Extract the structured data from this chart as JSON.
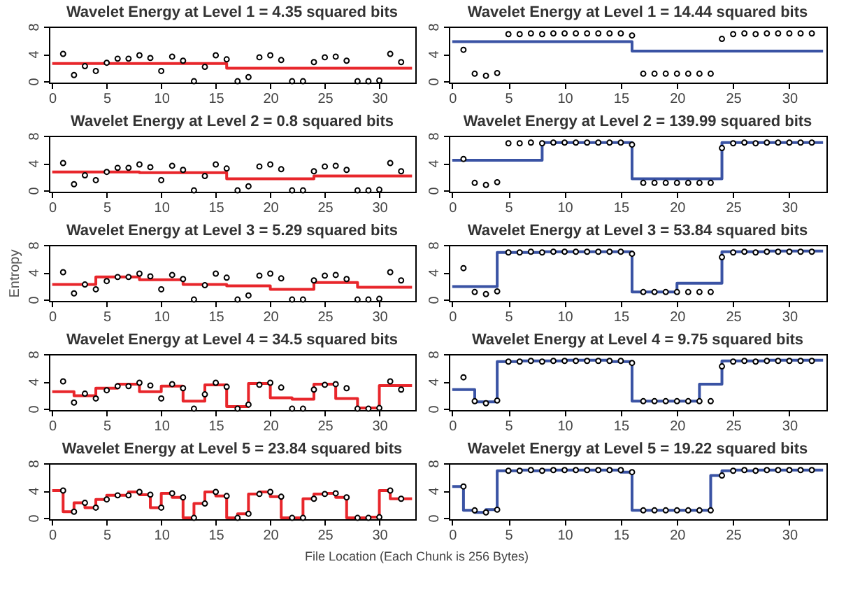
{
  "chart_data": [
    {
      "type": "scatter",
      "title": "Wavelet Energy at Level 1 = 4.35  squared bits",
      "xlim": [
        -0.3,
        33.3
      ],
      "ylim": [
        -0.2,
        8
      ],
      "xticks": [
        0,
        5,
        10,
        15,
        20,
        25,
        30
      ],
      "yticks": [
        0,
        4,
        8
      ],
      "grid": false,
      "series": [
        {
          "color": "#000000",
          "marker": "circle",
          "x": [
            1,
            2,
            3,
            4,
            5,
            6,
            7,
            8,
            9,
            10,
            11,
            12,
            13,
            14,
            15,
            16,
            17,
            18,
            19,
            20,
            21,
            22,
            23,
            24,
            25,
            26,
            27,
            28,
            29,
            30,
            31,
            32
          ],
          "values": [
            4.0,
            0.9,
            2.2,
            1.5,
            2.7,
            3.3,
            3.3,
            3.8,
            3.4,
            1.5,
            3.6,
            3.0,
            0,
            2.1,
            3.8,
            3.2,
            0,
            0.6,
            3.5,
            3.8,
            3.1,
            0,
            0,
            2.8,
            3.5,
            3.6,
            3.0,
            0,
            0,
            0.1,
            4.0,
            2.8
          ]
        },
        {
          "type": "step",
          "color": "#e8262b",
          "x": [
            0,
            16,
            33
          ],
          "values": [
            2.6,
            1.9,
            1.9
          ]
        }
      ]
    },
    {
      "type": "scatter",
      "title": "Wavelet Energy at Level 1 = 14.44  squared bits",
      "xlim": [
        -0.3,
        33.3
      ],
      "ylim": [
        -0.2,
        8
      ],
      "xticks": [
        0,
        5,
        10,
        15,
        20,
        25,
        30
      ],
      "yticks": [
        0,
        4,
        8
      ],
      "grid": false,
      "series": [
        {
          "color": "#000000",
          "marker": "circle",
          "x": [
            1,
            2,
            3,
            4,
            5,
            6,
            7,
            8,
            9,
            10,
            11,
            12,
            13,
            14,
            15,
            16,
            17,
            18,
            19,
            20,
            21,
            22,
            23,
            24,
            25,
            26,
            27,
            28,
            29,
            30,
            31,
            32
          ],
          "values": [
            4.6,
            1.1,
            0.8,
            1.2,
            6.9,
            6.9,
            7.0,
            6.9,
            7.0,
            7.0,
            7.0,
            7.0,
            7.0,
            7.0,
            7.0,
            6.7,
            1.1,
            1.1,
            1.1,
            1.1,
            1.1,
            1.1,
            1.1,
            6.2,
            6.9,
            7.0,
            6.9,
            7.0,
            7.0,
            7.0,
            7.0,
            7.0
          ]
        },
        {
          "type": "step",
          "color": "#3a53a4",
          "x": [
            0,
            16,
            33
          ],
          "values": [
            5.8,
            4.4,
            4.4
          ]
        }
      ]
    },
    {
      "type": "scatter",
      "title": "Wavelet Energy at Level 2 = 0.8  squared bits",
      "xlim": [
        -0.3,
        33.3
      ],
      "ylim": [
        -0.2,
        8
      ],
      "xticks": [
        0,
        5,
        10,
        15,
        20,
        25,
        30
      ],
      "yticks": [
        0,
        4,
        8
      ],
      "grid": false,
      "series": [
        {
          "color": "#000000",
          "marker": "circle",
          "x": [
            1,
            2,
            3,
            4,
            5,
            6,
            7,
            8,
            9,
            10,
            11,
            12,
            13,
            14,
            15,
            16,
            17,
            18,
            19,
            20,
            21,
            22,
            23,
            24,
            25,
            26,
            27,
            28,
            29,
            30,
            31,
            32
          ],
          "values": [
            4.0,
            0.9,
            2.2,
            1.5,
            2.7,
            3.3,
            3.3,
            3.8,
            3.4,
            1.5,
            3.6,
            3.0,
            0,
            2.1,
            3.8,
            3.2,
            0,
            0.6,
            3.5,
            3.8,
            3.1,
            0,
            0,
            2.8,
            3.5,
            3.6,
            3.0,
            0,
            0,
            0.1,
            4.0,
            2.8
          ]
        },
        {
          "type": "step",
          "color": "#e8262b",
          "x": [
            0,
            8,
            16,
            24,
            33
          ],
          "values": [
            2.7,
            2.6,
            1.7,
            2.1,
            2.1
          ]
        }
      ]
    },
    {
      "type": "scatter",
      "title": "Wavelet Energy at Level 2 = 139.99  squared bits",
      "xlim": [
        -0.3,
        33.3
      ],
      "ylim": [
        -0.2,
        8
      ],
      "xticks": [
        0,
        5,
        10,
        15,
        20,
        25,
        30
      ],
      "yticks": [
        0,
        4,
        8
      ],
      "grid": false,
      "series": [
        {
          "color": "#000000",
          "marker": "circle",
          "x": [
            1,
            2,
            3,
            4,
            5,
            6,
            7,
            8,
            9,
            10,
            11,
            12,
            13,
            14,
            15,
            16,
            17,
            18,
            19,
            20,
            21,
            22,
            23,
            24,
            25,
            26,
            27,
            28,
            29,
            30,
            31,
            32
          ],
          "values": [
            4.6,
            1.1,
            0.8,
            1.2,
            6.9,
            6.9,
            7.0,
            6.9,
            7.0,
            7.0,
            7.0,
            7.0,
            7.0,
            7.0,
            7.0,
            6.7,
            1.1,
            1.1,
            1.1,
            1.1,
            1.1,
            1.1,
            1.1,
            6.2,
            6.9,
            7.0,
            6.9,
            7.0,
            7.0,
            7.0,
            7.0,
            7.0
          ]
        },
        {
          "type": "step",
          "color": "#3a53a4",
          "x": [
            0,
            8,
            16,
            24,
            33
          ],
          "values": [
            4.4,
            7.0,
            1.7,
            7.0,
            7.0
          ]
        }
      ]
    },
    {
      "type": "scatter",
      "title": "Wavelet Energy at Level 3 = 5.29  squared bits",
      "ylabel": "Entropy",
      "xlim": [
        -0.3,
        33.3
      ],
      "ylim": [
        -0.2,
        8
      ],
      "xticks": [
        0,
        5,
        10,
        15,
        20,
        25,
        30
      ],
      "yticks": [
        0,
        4,
        8
      ],
      "grid": false,
      "series": [
        {
          "color": "#000000",
          "marker": "circle",
          "x": [
            1,
            2,
            3,
            4,
            5,
            6,
            7,
            8,
            9,
            10,
            11,
            12,
            13,
            14,
            15,
            16,
            17,
            18,
            19,
            20,
            21,
            22,
            23,
            24,
            25,
            26,
            27,
            28,
            29,
            30,
            31,
            32
          ],
          "values": [
            4.0,
            0.9,
            2.2,
            1.5,
            2.7,
            3.3,
            3.3,
            3.8,
            3.4,
            1.5,
            3.6,
            3.0,
            0,
            2.1,
            3.8,
            3.2,
            0,
            0.6,
            3.5,
            3.8,
            3.1,
            0,
            0,
            2.8,
            3.5,
            3.6,
            3.0,
            0,
            0,
            0.1,
            4.0,
            2.8
          ]
        },
        {
          "type": "step",
          "color": "#e8262b",
          "x": [
            0,
            4,
            8,
            12,
            16,
            20,
            24,
            28,
            33
          ],
          "values": [
            2.2,
            3.3,
            2.9,
            2.2,
            2.0,
            1.5,
            2.5,
            1.8,
            1.8
          ]
        }
      ]
    },
    {
      "type": "scatter",
      "title": "Wavelet Energy at Level 3 = 53.84  squared bits",
      "xlim": [
        -0.3,
        33.3
      ],
      "ylim": [
        -0.2,
        8
      ],
      "xticks": [
        0,
        5,
        10,
        15,
        20,
        25,
        30
      ],
      "yticks": [
        0,
        4,
        8
      ],
      "grid": false,
      "series": [
        {
          "color": "#000000",
          "marker": "circle",
          "x": [
            1,
            2,
            3,
            4,
            5,
            6,
            7,
            8,
            9,
            10,
            11,
            12,
            13,
            14,
            15,
            16,
            17,
            18,
            19,
            20,
            21,
            22,
            23,
            24,
            25,
            26,
            27,
            28,
            29,
            30,
            31,
            32
          ],
          "values": [
            4.6,
            1.1,
            0.8,
            1.2,
            6.9,
            6.9,
            7.0,
            6.9,
            7.0,
            7.0,
            7.0,
            7.0,
            7.0,
            7.0,
            7.0,
            6.7,
            1.1,
            1.1,
            1.1,
            1.1,
            1.1,
            1.1,
            1.1,
            6.2,
            6.9,
            7.0,
            6.9,
            7.0,
            7.0,
            7.0,
            7.0,
            7.0
          ]
        },
        {
          "type": "step",
          "color": "#3a53a4",
          "x": [
            0,
            4,
            8,
            12,
            16,
            20,
            24,
            28,
            33
          ],
          "values": [
            1.9,
            6.9,
            7.0,
            7.0,
            1.1,
            2.4,
            7.0,
            7.1,
            7.1
          ]
        }
      ]
    },
    {
      "type": "scatter",
      "title": "Wavelet Energy at Level 4 = 34.5  squared bits",
      "xlim": [
        -0.3,
        33.3
      ],
      "ylim": [
        -0.2,
        8
      ],
      "xticks": [
        0,
        5,
        10,
        15,
        20,
        25,
        30
      ],
      "yticks": [
        0,
        4,
        8
      ],
      "grid": false,
      "series": [
        {
          "color": "#000000",
          "marker": "circle",
          "x": [
            1,
            2,
            3,
            4,
            5,
            6,
            7,
            8,
            9,
            10,
            11,
            12,
            13,
            14,
            15,
            16,
            17,
            18,
            19,
            20,
            21,
            22,
            23,
            24,
            25,
            26,
            27,
            28,
            29,
            30,
            31,
            32
          ],
          "values": [
            4.0,
            0.9,
            2.2,
            1.5,
            2.7,
            3.3,
            3.3,
            3.8,
            3.4,
            1.5,
            3.6,
            3.0,
            0,
            2.1,
            3.8,
            3.2,
            0,
            0.6,
            3.5,
            3.8,
            3.1,
            0,
            0,
            2.8,
            3.5,
            3.6,
            3.0,
            0,
            0,
            0.1,
            4.0,
            2.8
          ]
        },
        {
          "type": "step",
          "color": "#e8262b",
          "x": [
            0,
            2,
            4,
            6,
            8,
            10,
            12,
            14,
            16,
            18,
            20,
            22,
            24,
            26,
            28,
            30,
            33
          ],
          "values": [
            2.5,
            1.9,
            3.0,
            3.6,
            2.5,
            3.3,
            1.1,
            3.5,
            0.3,
            3.7,
            1.6,
            1.4,
            3.6,
            1.5,
            0.1,
            3.4,
            3.4
          ]
        }
      ]
    },
    {
      "type": "scatter",
      "title": "Wavelet Energy at Level 4 = 9.75  squared bits",
      "xlim": [
        -0.3,
        33.3
      ],
      "ylim": [
        -0.2,
        8
      ],
      "xticks": [
        0,
        5,
        10,
        15,
        20,
        25,
        30
      ],
      "yticks": [
        0,
        4,
        8
      ],
      "grid": false,
      "series": [
        {
          "color": "#000000",
          "marker": "circle",
          "x": [
            1,
            2,
            3,
            4,
            5,
            6,
            7,
            8,
            9,
            10,
            11,
            12,
            13,
            14,
            15,
            16,
            17,
            18,
            19,
            20,
            21,
            22,
            23,
            24,
            25,
            26,
            27,
            28,
            29,
            30,
            31,
            32
          ],
          "values": [
            4.6,
            1.1,
            0.8,
            1.2,
            6.9,
            6.9,
            7.0,
            6.9,
            7.0,
            7.0,
            7.0,
            7.0,
            7.0,
            7.0,
            7.0,
            6.7,
            1.1,
            1.1,
            1.1,
            1.1,
            1.1,
            1.1,
            1.1,
            6.2,
            6.9,
            7.0,
            6.9,
            7.0,
            7.0,
            7.0,
            7.0,
            7.0
          ]
        },
        {
          "type": "step",
          "color": "#3a53a4",
          "x": [
            0,
            2,
            4,
            6,
            8,
            10,
            12,
            14,
            16,
            18,
            20,
            22,
            24,
            26,
            28,
            30,
            33
          ],
          "values": [
            2.8,
            1.0,
            6.9,
            7.0,
            7.0,
            7.1,
            7.1,
            6.9,
            1.1,
            1.1,
            1.1,
            3.6,
            7.0,
            7.0,
            7.1,
            7.1,
            7.1
          ]
        }
      ]
    },
    {
      "type": "scatter",
      "title": "Wavelet Energy at Level 5 = 23.84  squared bits",
      "xlabel": "File Location (Each Chunk is 256 Bytes)",
      "xlim": [
        -0.3,
        33.3
      ],
      "ylim": [
        -0.2,
        8
      ],
      "xticks": [
        0,
        5,
        10,
        15,
        20,
        25,
        30
      ],
      "yticks": [
        0,
        4,
        8
      ],
      "grid": false,
      "series": [
        {
          "color": "#000000",
          "marker": "circle",
          "x": [
            1,
            2,
            3,
            4,
            5,
            6,
            7,
            8,
            9,
            10,
            11,
            12,
            13,
            14,
            15,
            16,
            17,
            18,
            19,
            20,
            21,
            22,
            23,
            24,
            25,
            26,
            27,
            28,
            29,
            30,
            31,
            32
          ],
          "values": [
            4.0,
            0.9,
            2.2,
            1.5,
            2.7,
            3.3,
            3.3,
            3.8,
            3.4,
            1.5,
            3.6,
            3.0,
            0,
            2.1,
            3.8,
            3.2,
            0,
            0.6,
            3.5,
            3.8,
            3.1,
            0,
            0,
            2.8,
            3.5,
            3.6,
            3.0,
            0,
            0,
            0.1,
            4.0,
            2.8
          ]
        },
        {
          "type": "step",
          "color": "#e8262b",
          "x": [
            0,
            1,
            2,
            3,
            4,
            5,
            6,
            7,
            8,
            9,
            10,
            11,
            12,
            13,
            14,
            15,
            16,
            17,
            18,
            19,
            20,
            21,
            22,
            23,
            24,
            25,
            26,
            27,
            28,
            29,
            30,
            31,
            33
          ],
          "values": [
            4.0,
            0.9,
            2.2,
            1.5,
            2.7,
            3.3,
            3.3,
            3.8,
            3.4,
            1.5,
            3.6,
            3.0,
            0,
            2.1,
            3.8,
            3.2,
            0,
            0.6,
            3.5,
            3.8,
            3.1,
            0,
            0,
            2.8,
            3.5,
            3.6,
            3.0,
            0,
            0,
            0.1,
            4.0,
            2.8,
            2.8
          ]
        }
      ]
    },
    {
      "type": "scatter",
      "title": "Wavelet Energy at Level 5 = 19.22  squared bits",
      "xlim": [
        -0.3,
        33.3
      ],
      "ylim": [
        -0.2,
        8
      ],
      "xticks": [
        0,
        5,
        10,
        15,
        20,
        25,
        30
      ],
      "yticks": [
        0,
        4,
        8
      ],
      "grid": false,
      "series": [
        {
          "color": "#000000",
          "marker": "circle",
          "x": [
            1,
            2,
            3,
            4,
            5,
            6,
            7,
            8,
            9,
            10,
            11,
            12,
            13,
            14,
            15,
            16,
            17,
            18,
            19,
            20,
            21,
            22,
            23,
            24,
            25,
            26,
            27,
            28,
            29,
            30,
            31,
            32
          ],
          "values": [
            4.6,
            1.1,
            0.8,
            1.2,
            6.9,
            6.9,
            7.0,
            6.9,
            7.0,
            7.0,
            7.0,
            7.0,
            7.0,
            7.0,
            7.0,
            6.7,
            1.1,
            1.1,
            1.1,
            1.1,
            1.1,
            1.1,
            1.1,
            6.2,
            6.9,
            7.0,
            6.9,
            7.0,
            7.0,
            7.0,
            7.0,
            7.0
          ]
        },
        {
          "type": "step",
          "color": "#3a53a4",
          "x": [
            0,
            1,
            2,
            3,
            4,
            5,
            6,
            7,
            8,
            9,
            10,
            11,
            12,
            13,
            14,
            15,
            16,
            17,
            18,
            19,
            20,
            21,
            22,
            23,
            24,
            25,
            26,
            27,
            28,
            29,
            30,
            31,
            33
          ],
          "values": [
            4.6,
            1.1,
            0.8,
            1.2,
            6.9,
            6.9,
            7.0,
            6.9,
            7.0,
            7.0,
            7.0,
            7.0,
            7.0,
            7.0,
            7.0,
            6.7,
            1.1,
            1.1,
            1.1,
            1.1,
            1.1,
            1.1,
            1.1,
            6.2,
            6.9,
            7.0,
            6.9,
            7.0,
            7.0,
            7.0,
            7.0,
            7.0,
            7.0
          ]
        }
      ]
    }
  ]
}
